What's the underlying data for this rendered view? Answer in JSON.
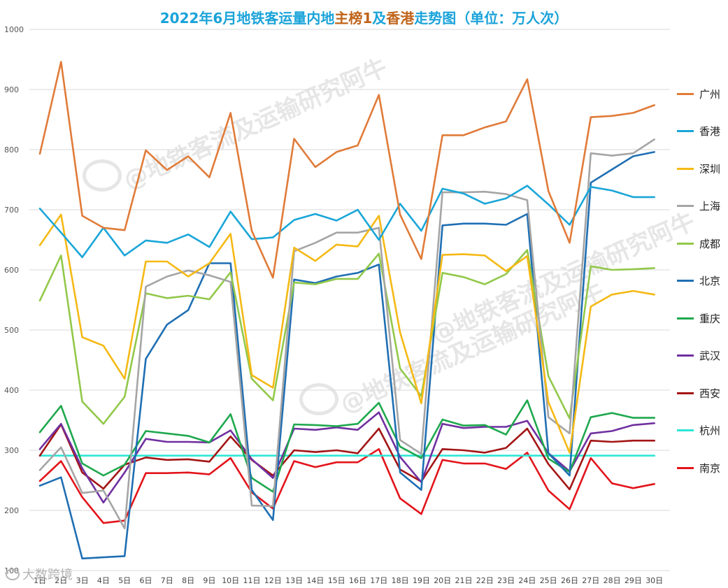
{
  "title_parts": [
    {
      "text": "2022年6月地铁客运量内地",
      "color": "#1aa3d9"
    },
    {
      "text": "主榜1",
      "color": "#c0641a"
    },
    {
      "text": "及",
      "color": "#1aa3d9"
    },
    {
      "text": "香港",
      "color": "#c0641a"
    },
    {
      "text": "走势图（单位：万人次）",
      "color": "#1aa3d9"
    }
  ],
  "watermarks": [
    "@地铁客流及运输研究阿牛",
    "@地铁客流及运输研究阿牛",
    "@地铁客流及运输研究阿牛"
  ],
  "footer_watermark": "大数跨境",
  "chart_data": {
    "type": "line",
    "title": "2022年6月地铁客运量内地主榜1及香港走势图（单位：万人次）",
    "xlabel": "",
    "ylabel": "",
    "categories": [
      "1日",
      "2日",
      "3日",
      "4日",
      "5日",
      "6日",
      "7日",
      "8日",
      "9日",
      "10日",
      "11日",
      "12日",
      "13日",
      "14日",
      "15日",
      "16日",
      "17日",
      "18日",
      "19日",
      "20日",
      "21日",
      "22日",
      "23日",
      "24日",
      "25日",
      "26日",
      "27日",
      "28日",
      "29日",
      "30日"
    ],
    "ylim": [
      100,
      1000
    ],
    "yticks": [
      100,
      200,
      300,
      400,
      500,
      600,
      700,
      800,
      900,
      1000
    ],
    "grid": true,
    "legend_position": "right",
    "series": [
      {
        "name": "广州",
        "color": "#e07b39",
        "values": [
          793,
          946,
          690,
          670,
          666,
          799,
          766,
          789,
          754,
          861,
          665,
          587,
          818,
          771,
          796,
          807,
          891,
          692,
          618,
          824,
          824,
          837,
          847,
          917,
          731,
          645,
          854,
          856,
          861,
          874
        ]
      },
      {
        "name": "香港",
        "color": "#1aa6d8",
        "values": [
          702,
          662,
          621,
          670,
          624,
          649,
          645,
          659,
          638,
          697,
          651,
          654,
          683,
          693,
          682,
          700,
          650,
          710,
          665,
          735,
          727,
          710,
          719,
          740,
          709,
          675,
          738,
          732,
          721,
          721
        ]
      },
      {
        "name": "深圳",
        "color": "#f5b915",
        "values": [
          641,
          692,
          488,
          474,
          419,
          614,
          614,
          589,
          611,
          660,
          425,
          404,
          637,
          615,
          642,
          639,
          690,
          496,
          378,
          625,
          626,
          624,
          598,
          623,
          380,
          296,
          539,
          559,
          565,
          559
        ]
      },
      {
        "name": "上海",
        "color": "#a5a5a5",
        "values": [
          267,
          305,
          229,
          233,
          170,
          572,
          589,
          599,
          591,
          580,
          208,
          207,
          631,
          645,
          662,
          662,
          670,
          317,
          294,
          729,
          729,
          730,
          726,
          716,
          355,
          328,
          794,
          790,
          794,
          817
        ]
      },
      {
        "name": "成都",
        "color": "#92c84a",
        "values": [
          549,
          624,
          381,
          344,
          389,
          561,
          553,
          557,
          551,
          596,
          419,
          383,
          579,
          576,
          585,
          585,
          627,
          436,
          390,
          595,
          588,
          576,
          593,
          633,
          423,
          353,
          606,
          600,
          601,
          603
        ]
      },
      {
        "name": "北京",
        "color": "#1f6fb3",
        "values": [
          241,
          255,
          120,
          122,
          124,
          452,
          509,
          533,
          611,
          611,
          234,
          184,
          584,
          578,
          589,
          595,
          609,
          263,
          234,
          674,
          677,
          677,
          675,
          693,
          295,
          258,
          745,
          767,
          789,
          796
        ]
      },
      {
        "name": "重庆",
        "color": "#1fa84e",
        "values": [
          330,
          374,
          278,
          258,
          276,
          332,
          328,
          324,
          313,
          360,
          254,
          231,
          343,
          342,
          340,
          344,
          379,
          306,
          287,
          351,
          341,
          342,
          326,
          383,
          286,
          264,
          355,
          362,
          354,
          354
        ]
      },
      {
        "name": "武汉",
        "color": "#7030a0",
        "values": [
          302,
          344,
          270,
          213,
          263,
          319,
          314,
          314,
          313,
          333,
          285,
          254,
          336,
          334,
          338,
          334,
          363,
          289,
          247,
          344,
          337,
          339,
          339,
          349,
          295,
          265,
          328,
          332,
          342,
          345
        ]
      },
      {
        "name": "西安",
        "color": "#a31515",
        "values": [
          291,
          343,
          263,
          236,
          276,
          288,
          284,
          285,
          281,
          323,
          284,
          258,
          300,
          297,
          300,
          295,
          336,
          268,
          248,
          302,
          300,
          296,
          304,
          336,
          277,
          235,
          316,
          314,
          316,
          316
        ]
      },
      {
        "name": "杭州",
        "color": "#2ee6d6",
        "values": [
          291,
          291,
          291,
          291,
          291,
          291,
          291,
          291,
          291,
          291,
          291,
          291,
          291,
          291,
          291,
          291,
          291,
          291,
          291,
          291,
          291,
          291,
          291,
          291,
          291,
          291,
          291,
          291,
          291,
          291
        ]
      },
      {
        "name": "南京",
        "color": "#e3141b",
        "values": [
          249,
          282,
          222,
          179,
          183,
          262,
          262,
          263,
          260,
          287,
          230,
          203,
          282,
          272,
          280,
          280,
          302,
          220,
          194,
          284,
          278,
          278,
          269,
          296,
          233,
          202,
          287,
          245,
          237,
          244
        ]
      }
    ]
  }
}
